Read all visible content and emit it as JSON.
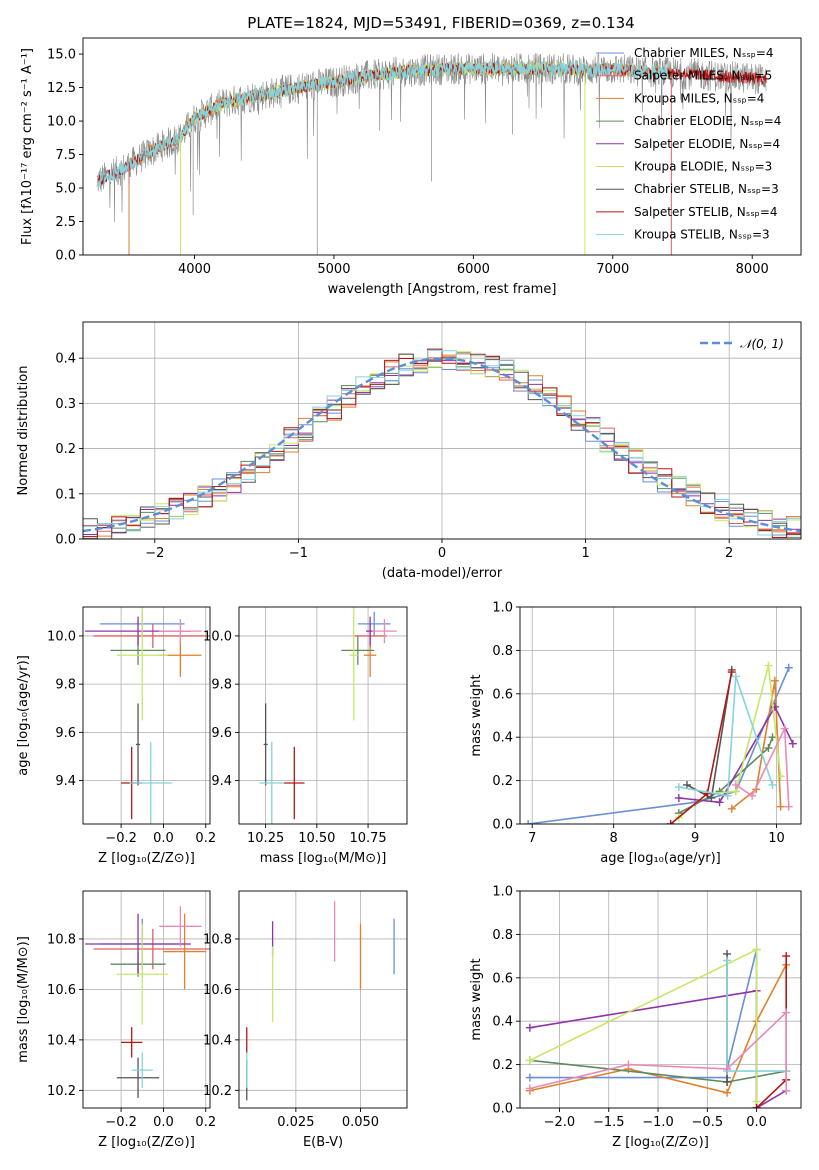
{
  "figure_title": "PLATE=1824, MJD=53491, FIBERID=0369, z=0.134",
  "colors": {
    "Chabrier MILES": "#6a8fd8",
    "Salpeter MILES": "#e06060",
    "Kroupa MILES": "#e0802a",
    "Chabrier ELODIE": "#5e8a5e",
    "Salpeter ELODIE": "#9033a8",
    "Kroupa ELODIE": "#c6e866",
    "Chabrier STELIB": "#555555",
    "Salpeter STELIB": "#b51616",
    "Kroupa STELIB": "#85d3db",
    "pink": "#e88ab8",
    "normal": "#5b8ed8"
  },
  "chart_data": [
    {
      "id": "spectrum",
      "type": "line",
      "title": "PLATE=1824, MJD=53491, FIBERID=0369, z=0.134",
      "xlabel": "wavelength [Angstrom, rest frame]",
      "ylabel": "Flux [fλ10⁻¹⁷ erg cm⁻² s⁻¹ A⁻¹]",
      "xlim": [
        3200,
        8350
      ],
      "ylim": [
        0,
        16.2
      ],
      "xticks": [
        "4000",
        "5000",
        "6000",
        "7000",
        "8000"
      ],
      "yticks": [
        "0.0",
        "2.5",
        "5.0",
        "7.5",
        "10.0",
        "12.5",
        "15.0"
      ],
      "grid": false,
      "legend_position": "top-right",
      "legend": [
        "Chabrier MILES, Nₛₛₚ=4",
        "Salpeter MILES, Nₛₛₚ=5",
        "Kroupa MILES, Nₛₛₚ=4",
        "Chabrier ELODIE, Nₛₛₚ=4",
        "Salpeter ELODIE, Nₛₛₚ=4",
        "Kroupa ELODIE, Nₛₛₚ=3",
        "Chabrier STELIB, Nₛₛₚ=3",
        "Salpeter STELIB, Nₛₛₚ=4",
        "Kroupa STELIB, Nₛₛₚ=3"
      ],
      "continuum": {
        "x": [
          3300,
          3500,
          3700,
          3900,
          4000,
          4200,
          4400,
          4600,
          4800,
          5000,
          5200,
          5500,
          5800,
          6000,
          6300,
          6600,
          6800,
          7000,
          7200,
          7400,
          7600,
          7800,
          8000,
          8100
        ],
        "y": [
          5.5,
          6.5,
          7.8,
          8.8,
          10.2,
          11.3,
          11.8,
          12.2,
          12.6,
          12.9,
          13.3,
          13.7,
          13.9,
          13.9,
          13.9,
          13.9,
          13.8,
          13.9,
          13.7,
          13.6,
          13.5,
          13.3,
          13.2,
          13.1
        ]
      },
      "model_cutoffs": [
        {
          "model": "Salpeter MILES",
          "x": 3530
        },
        {
          "model": "Kroupa ELODIE",
          "x": 3900
        },
        {
          "model": "Kroupa ELODIE",
          "x": 6800
        },
        {
          "model": "Salpeter MILES",
          "x": 7420
        }
      ]
    },
    {
      "id": "residuals",
      "type": "histogram",
      "xlabel": "(data-model)/error",
      "ylabel": "Normed distribution",
      "xlim": [
        -2.5,
        2.5
      ],
      "ylim": [
        0,
        0.48
      ],
      "xticks": [
        "−2",
        "−1",
        "0",
        "1",
        "2"
      ],
      "yticks": [
        "0.0",
        "0.1",
        "0.2",
        "0.3",
        "0.4"
      ],
      "grid": true,
      "legend_position": "top-right",
      "legend": [
        "𝒩(0, 1)"
      ],
      "bin_width": 0.1,
      "series_models": [
        "Chabrier MILES",
        "Salpeter MILES",
        "Kroupa MILES",
        "Chabrier ELODIE",
        "Salpeter ELODIE",
        "Kroupa ELODIE",
        "Chabrier STELIB",
        "Salpeter STELIB",
        "Kroupa STELIB"
      ]
    },
    {
      "id": "age-vs-Z",
      "type": "scatter",
      "xlabel": "Z [log₁₀(Z/Z⊙)]",
      "ylabel": "age  [log₁₀(age/yr)]",
      "xlim": [
        -0.38,
        0.22
      ],
      "ylim": [
        9.22,
        10.12
      ],
      "xticks": [
        "−0.2",
        "0.0",
        "0.2"
      ],
      "yticks": [
        "9.4",
        "9.6",
        "9.8",
        "10.0"
      ],
      "grid": true,
      "points": [
        {
          "model": "Chabrier MILES",
          "x": -0.1,
          "y": 10.05,
          "xerr": 0.2,
          "yerr": 0.05
        },
        {
          "model": "Salpeter MILES",
          "x": -0.05,
          "y": 10.0,
          "xerr": 0.28,
          "yerr": 0.05
        },
        {
          "model": "Kroupa MILES",
          "x": 0.08,
          "y": 9.92,
          "xerr": 0.1,
          "yerr": 0.09
        },
        {
          "model": "Chabrier ELODIE",
          "x": -0.12,
          "y": 9.94,
          "xerr": 0.13,
          "yerr": 0.06
        },
        {
          "model": "Salpeter ELODIE",
          "x": -0.12,
          "y": 10.02,
          "xerr": 0.25,
          "yerr": 0.06
        },
        {
          "model": "Kroupa ELODIE",
          "x": -0.1,
          "y": 9.92,
          "xerr": 0.12,
          "yerr": 0.27
        },
        {
          "model": "Chabrier STELIB",
          "x": -0.12,
          "y": 9.55,
          "xerr": 0.01,
          "yerr": 0.17
        },
        {
          "model": "Salpeter STELIB",
          "x": -0.15,
          "y": 9.39,
          "xerr": 0.05,
          "yerr": 0.15
        },
        {
          "model": "Kroupa STELIB",
          "x": -0.06,
          "y": 9.39,
          "xerr": 0.1,
          "yerr": 0.17
        },
        {
          "model": "pink",
          "x": 0.08,
          "y": 10.02,
          "xerr": 0.1,
          "yerr": 0.05
        }
      ]
    },
    {
      "id": "age-vs-mass",
      "type": "scatter",
      "xlabel": "mass [log₁₀(M/M⊙)]",
      "ylabel": "",
      "xlim": [
        10.12,
        10.94
      ],
      "ylim": [
        9.22,
        10.12
      ],
      "xticks": [
        "10.25",
        "10.50",
        "10.75"
      ],
      "yticks": [
        "9.4",
        "9.6",
        "9.8",
        "10.0"
      ],
      "grid": true,
      "points": [
        {
          "model": "Chabrier MILES",
          "x": 10.78,
          "y": 10.05,
          "xerr": 0.08,
          "yerr": 0.05
        },
        {
          "model": "Salpeter MILES",
          "x": 10.76,
          "y": 10.0,
          "xerr": 0.08,
          "yerr": 0.05
        },
        {
          "model": "Kroupa MILES",
          "x": 10.76,
          "y": 9.92,
          "xerr": 0.03,
          "yerr": 0.09
        },
        {
          "model": "Chabrier ELODIE",
          "x": 10.7,
          "y": 9.94,
          "xerr": 0.08,
          "yerr": 0.06
        },
        {
          "model": "Salpeter ELODIE",
          "x": 10.76,
          "y": 10.02,
          "xerr": 0.02,
          "yerr": 0.06
        },
        {
          "model": "Kroupa ELODIE",
          "x": 10.68,
          "y": 9.92,
          "xerr": 0.02,
          "yerr": 0.27
        },
        {
          "model": "Chabrier STELIB",
          "x": 10.25,
          "y": 9.55,
          "xerr": 0.01,
          "yerr": 0.17
        },
        {
          "model": "Salpeter STELIB",
          "x": 10.39,
          "y": 9.39,
          "xerr": 0.05,
          "yerr": 0.15
        },
        {
          "model": "Kroupa STELIB",
          "x": 10.28,
          "y": 9.39,
          "xerr": 0.06,
          "yerr": 0.17
        },
        {
          "model": "pink",
          "x": 10.83,
          "y": 10.02,
          "xerr": 0.06,
          "yerr": 0.05
        }
      ]
    },
    {
      "id": "massweight-vs-age",
      "type": "line",
      "xlabel": "age  [log₁₀(age/yr)]",
      "ylabel": "mass weight",
      "xlim": [
        6.85,
        10.3
      ],
      "ylim": [
        0,
        1.0
      ],
      "xticks": [
        "7",
        "8",
        "9",
        "10"
      ],
      "yticks": [
        "0.0",
        "0.2",
        "0.4",
        "0.6",
        "0.8",
        "1.0"
      ],
      "grid": true,
      "series": [
        {
          "model": "Chabrier MILES",
          "x": [
            6.95,
            9.0,
            9.5,
            10.15
          ],
          "y": [
            0.0,
            0.1,
            0.15,
            0.72
          ]
        },
        {
          "model": "Kroupa MILES",
          "x": [
            9.45,
            9.75,
            9.98,
            10.05
          ],
          "y": [
            0.07,
            0.16,
            0.66,
            0.08
          ]
        },
        {
          "model": "Chabrier ELODIE",
          "x": [
            8.8,
            9.3,
            9.9,
            9.95
          ],
          "y": [
            0.05,
            0.15,
            0.35,
            0.4
          ]
        },
        {
          "model": "Salpeter ELODIE",
          "x": [
            8.8,
            9.3,
            9.98,
            10.2
          ],
          "y": [
            0.12,
            0.1,
            0.54,
            0.37
          ]
        },
        {
          "model": "Kroupa ELODIE",
          "x": [
            8.8,
            9.15,
            9.5,
            9.9,
            10.05
          ],
          "y": [
            0.03,
            0.14,
            0.15,
            0.73,
            0.22
          ]
        },
        {
          "model": "Chabrier STELIB",
          "x": [
            8.9,
            9.2,
            9.45
          ],
          "y": [
            0.18,
            0.12,
            0.71
          ]
        },
        {
          "model": "Salpeter STELIB",
          "x": [
            8.7,
            9.15,
            9.45
          ],
          "y": [
            0.0,
            0.14,
            0.7
          ]
        },
        {
          "model": "Kroupa STELIB",
          "x": [
            8.8,
            9.4,
            9.5,
            9.95
          ],
          "y": [
            0.17,
            0.13,
            0.68,
            0.18
          ]
        },
        {
          "model": "pink",
          "x": [
            9.5,
            9.7,
            10.1,
            10.15
          ],
          "y": [
            0.18,
            0.13,
            0.44,
            0.08
          ]
        }
      ]
    },
    {
      "id": "mass-vs-Z",
      "type": "scatter",
      "xlabel": "Z [log₁₀(Z/Z⊙)]",
      "ylabel": "mass [log₁₀(M/M⊙)]",
      "xlim": [
        -0.38,
        0.22
      ],
      "ylim": [
        10.13,
        10.99
      ],
      "xticks": [
        "−0.2",
        "0.0",
        "0.2"
      ],
      "yticks": [
        "10.2",
        "10.4",
        "10.6",
        "10.8"
      ],
      "grid": true,
      "points": [
        {
          "model": "Chabrier MILES",
          "x": -0.1,
          "y": 10.78,
          "xerr": 0.2,
          "yerr": 0.1
        },
        {
          "model": "Salpeter MILES",
          "x": -0.05,
          "y": 10.76,
          "xerr": 0.28,
          "yerr": 0.08
        },
        {
          "model": "Kroupa MILES",
          "x": 0.1,
          "y": 10.75,
          "xerr": 0.1,
          "yerr": 0.15
        },
        {
          "model": "Chabrier ELODIE",
          "x": -0.12,
          "y": 10.7,
          "xerr": 0.13,
          "yerr": 0.05
        },
        {
          "model": "Salpeter ELODIE",
          "x": -0.12,
          "y": 10.78,
          "xerr": 0.25,
          "yerr": 0.12
        },
        {
          "model": "Kroupa ELODIE",
          "x": -0.1,
          "y": 10.66,
          "xerr": 0.12,
          "yerr": 0.2
        },
        {
          "model": "Chabrier STELIB",
          "x": -0.12,
          "y": 10.25,
          "xerr": 0.1,
          "yerr": 0.08
        },
        {
          "model": "Salpeter STELIB",
          "x": -0.15,
          "y": 10.39,
          "xerr": 0.05,
          "yerr": 0.06
        },
        {
          "model": "Kroupa STELIB",
          "x": -0.1,
          "y": 10.28,
          "xerr": 0.05,
          "yerr": 0.07
        },
        {
          "model": "pink",
          "x": 0.08,
          "y": 10.85,
          "xerr": 0.1,
          "yerr": 0.08
        }
      ]
    },
    {
      "id": "mass-vs-EBV",
      "type": "scatter",
      "xlabel": "E(B-V)",
      "ylabel": "",
      "xlim": [
        0.003,
        0.068
      ],
      "ylim": [
        10.13,
        10.99
      ],
      "xticks": [
        "0.025",
        "0.050"
      ],
      "yticks": [
        "10.2",
        "10.4",
        "10.6",
        "10.8"
      ],
      "grid": true,
      "points": [
        {
          "model": "Chabrier MILES",
          "x": 0.063,
          "y": 10.77,
          "xerr": 0,
          "yerr": 0.11
        },
        {
          "model": "Kroupa MILES",
          "x": 0.05,
          "y": 10.73,
          "xerr": 0,
          "yerr": 0.13
        },
        {
          "model": "pink",
          "x": 0.04,
          "y": 10.83,
          "xerr": 0,
          "yerr": 0.12
        },
        {
          "model": "Salpeter ELODIE",
          "x": 0.016,
          "y": 10.8,
          "xerr": 0,
          "yerr": 0.07
        },
        {
          "model": "Kroupa ELODIE",
          "x": 0.016,
          "y": 10.62,
          "xerr": 0,
          "yerr": 0.15
        },
        {
          "model": "Salpeter STELIB",
          "x": 0.006,
          "y": 10.4,
          "xerr": 0,
          "yerr": 0.05
        },
        {
          "model": "Chabrier STELIB",
          "x": 0.006,
          "y": 10.24,
          "xerr": 0,
          "yerr": 0.08
        },
        {
          "model": "Kroupa STELIB",
          "x": 0.006,
          "y": 10.28,
          "xerr": 0,
          "yerr": 0.07
        }
      ]
    },
    {
      "id": "massweight-vs-Z",
      "type": "line",
      "xlabel": "Z [log₁₀(Z/Z⊙)]",
      "ylabel": "mass weight",
      "xlim": [
        -2.4,
        0.45
      ],
      "ylim": [
        0,
        1.0
      ],
      "xticks": [
        "−2.0",
        "−1.5",
        "−1.0",
        "−0.5",
        "0.0"
      ],
      "yticks": [
        "0.0",
        "0.2",
        "0.4",
        "0.6",
        "0.8",
        "1.0"
      ],
      "grid": true,
      "series": [
        {
          "model": "Chabrier MILES",
          "x": [
            -2.3,
            -0.3,
            -0.3,
            0.0,
            0.0
          ],
          "y": [
            0.14,
            0.14,
            0.18,
            0.73,
            0.0
          ]
        },
        {
          "model": "Kroupa MILES",
          "x": [
            -2.3,
            -1.3,
            -0.3,
            0.0,
            0.3
          ],
          "y": [
            0.08,
            0.18,
            0.07,
            0.4,
            0.66
          ]
        },
        {
          "model": "Chabrier ELODIE",
          "x": [
            -2.3,
            -0.3,
            0.3
          ],
          "y": [
            0.22,
            0.12,
            0.17
          ]
        },
        {
          "model": "Salpeter ELODIE",
          "x": [
            -2.3,
            0.0,
            0.0,
            0.3
          ],
          "y": [
            0.37,
            0.54,
            0.0,
            0.08
          ]
        },
        {
          "model": "Kroupa ELODIE",
          "x": [
            -2.3,
            0.0,
            0.0
          ],
          "y": [
            0.22,
            0.73,
            0.03
          ]
        },
        {
          "model": "Chabrier STELIB",
          "x": [
            -0.3,
            -0.3
          ],
          "y": [
            0.71,
            0.12
          ]
        },
        {
          "model": "Salpeter STELIB",
          "x": [
            0.0,
            0.3,
            0.3
          ],
          "y": [
            0.0,
            0.13,
            0.7
          ]
        },
        {
          "model": "Kroupa STELIB",
          "x": [
            -0.3,
            -0.3,
            0.3
          ],
          "y": [
            0.68,
            0.17,
            0.17
          ]
        },
        {
          "model": "pink",
          "x": [
            -2.3,
            -1.3,
            -0.3,
            0.3,
            0.3
          ],
          "y": [
            0.09,
            0.2,
            0.18,
            0.44,
            0.08
          ]
        }
      ]
    }
  ]
}
